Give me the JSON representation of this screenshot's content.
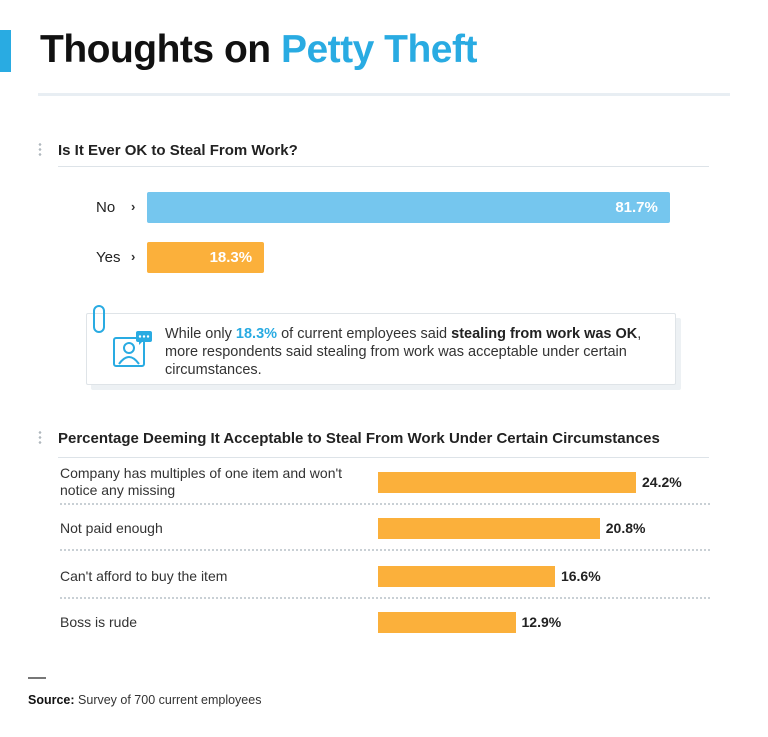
{
  "header": {
    "title_part1": "Thoughts on ",
    "title_part2": "Petty Theft",
    "accent_color": "#29abe2"
  },
  "callout": {
    "text_1": "While only ",
    "highlight_pct": "18.3%",
    "text_2": " of current employees said ",
    "bold_text": "stealing from work was OK",
    "text_3": ", more respondents said stealing from work was acceptable under certain circumstances.",
    "icon": "employee-chat-icon"
  },
  "source": {
    "label": "Source:",
    "text": "Survey of 700 current employees"
  },
  "chart_data": [
    {
      "type": "bar",
      "orientation": "horizontal",
      "title": "Is It Ever OK to Steal From Work?",
      "categories": [
        "No",
        "Yes"
      ],
      "values": [
        81.7,
        18.3
      ],
      "value_labels": [
        "81.7%",
        "18.3%"
      ],
      "colors": [
        "#75c6ee",
        "#fbb03b"
      ],
      "xlim": [
        0,
        100
      ]
    },
    {
      "type": "bar",
      "orientation": "horizontal",
      "title": "Percentage Deeming It Acceptable to Steal From Work Under Certain Circumstances",
      "categories": [
        "Company has multiples of one item and won't notice any missing",
        "Not paid enough",
        "Can't afford to buy the item",
        "Boss is rude"
      ],
      "values": [
        24.2,
        20.8,
        16.6,
        12.9
      ],
      "value_labels": [
        "24.2%",
        "20.8%",
        "16.6%",
        "12.9%"
      ],
      "color": "#fbb03b",
      "xlim": [
        0,
        24.2
      ]
    }
  ]
}
